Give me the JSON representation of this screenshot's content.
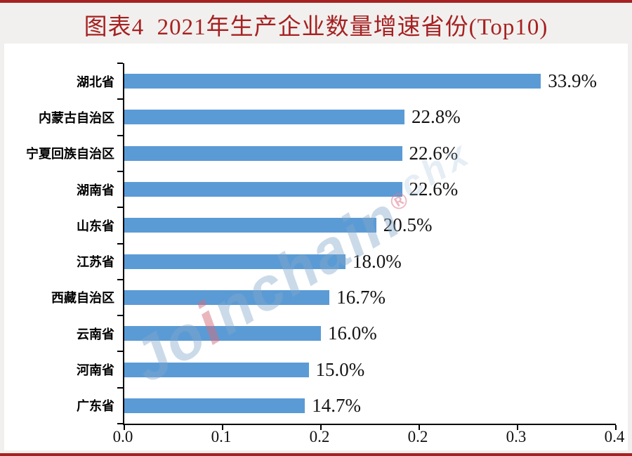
{
  "page": {
    "title": "图表4  2021年生产企业数量增速省份(Top10)"
  },
  "colors": {
    "accent_red": "#A62121",
    "bar_blue": "#5B9BD5",
    "axis_black": "#000000",
    "panel_white": "#ffffff",
    "page_background": "#f1f0ee"
  },
  "watermark": {
    "prefix": "Jo",
    "dotted": "i",
    "rest": "nchain",
    "mark": "®",
    "suffix": "chx"
  },
  "chart_data": {
    "type": "bar",
    "orientation": "horizontal",
    "title": "图表4 2021年生产企业数量增速省份(Top10)",
    "categories": [
      "湖北省",
      "内蒙古自治区",
      "宁夏回族自治区",
      "湖南省",
      "山东省",
      "江苏省",
      "西藏自治区",
      "云南省",
      "河南省",
      "广东省"
    ],
    "values": [
      0.339,
      0.228,
      0.226,
      0.226,
      0.205,
      0.18,
      0.167,
      0.16,
      0.15,
      0.147
    ],
    "value_labels": [
      "33.9%",
      "22.8%",
      "22.6%",
      "22.6%",
      "20.5%",
      "18.0%",
      "16.7%",
      "16.0%",
      "15.0%",
      "14.7%"
    ],
    "xlabel": "",
    "ylabel": "",
    "xlim": [
      0,
      0.4
    ],
    "x_tick_values": [
      0,
      0.08,
      0.16,
      0.24,
      0.32,
      0.4
    ],
    "x_tick_labels": [
      "0.0",
      "0.1",
      "0.2",
      "0.2",
      "0.3",
      "0.4"
    ],
    "grid": false,
    "legend": false,
    "bar_color": "#5B9BD5"
  }
}
